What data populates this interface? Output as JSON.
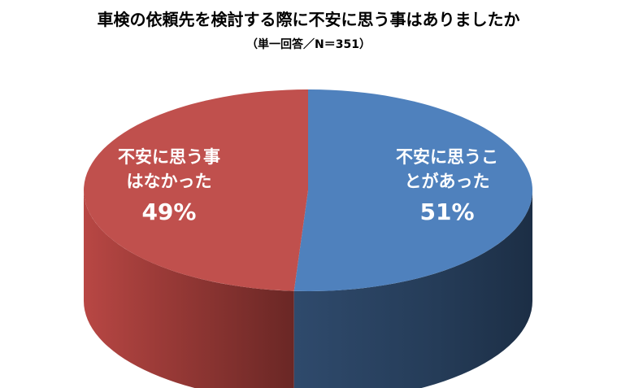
{
  "chart_data": {
    "type": "pie",
    "title": "車検の依頼先を検討する際に不安に思う事はありましたか",
    "subtitle": "（単一回答／N＝351）",
    "slices": [
      {
        "line1": "不安に思うこ",
        "line2": "とがあった",
        "value": 51,
        "value_label": "51%",
        "color": "#4f81bd",
        "side_color": "#2c4565"
      },
      {
        "line1": "不安に思う事",
        "line2": "はなかった",
        "value": 49,
        "value_label": "49%",
        "color": "#c0504d",
        "side_color": "#6f2a28"
      }
    ],
    "legend": "none"
  }
}
